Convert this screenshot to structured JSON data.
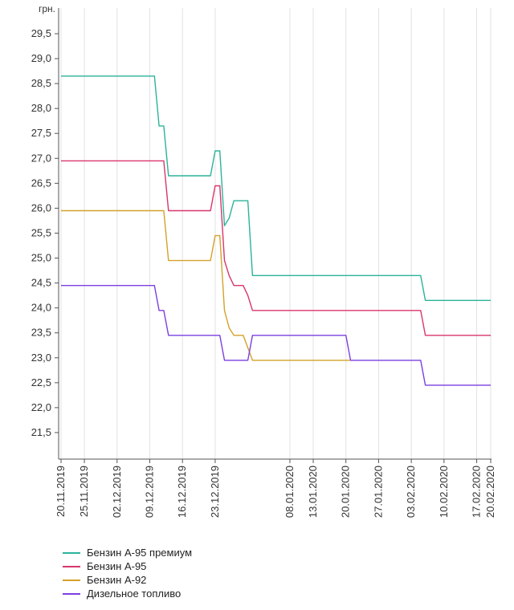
{
  "chart_data": {
    "type": "line",
    "ylabel": "грн.",
    "ylim": [
      21.0,
      29.5
    ],
    "y_ticks": [
      "21,5",
      "22,0",
      "22,5",
      "23,0",
      "23,5",
      "24,0",
      "24,5",
      "25,0",
      "25,5",
      "26,0",
      "26,5",
      "27,0",
      "27,5",
      "28,0",
      "28,5",
      "29,0",
      "29,5"
    ],
    "x_range": [
      "2019-11-20",
      "2020-02-20"
    ],
    "x_ticks": [
      {
        "date": "2019-11-20",
        "label": "20.11.2019"
      },
      {
        "date": "2019-11-25",
        "label": "25.11.2019"
      },
      {
        "date": "2019-12-02",
        "label": "02.12.2019"
      },
      {
        "date": "2019-12-09",
        "label": "09.12.2019"
      },
      {
        "date": "2019-12-16",
        "label": "16.12.2019"
      },
      {
        "date": "2019-12-23",
        "label": "23.12.2019"
      },
      {
        "date": "2020-01-08",
        "label": "08.01.2020"
      },
      {
        "date": "2020-01-13",
        "label": "13.01.2020"
      },
      {
        "date": "2020-01-20",
        "label": "20.01.2020"
      },
      {
        "date": "2020-01-27",
        "label": "27.01.2020"
      },
      {
        "date": "2020-02-03",
        "label": "03.02.2020"
      },
      {
        "date": "2020-02-10",
        "label": "10.02.2020"
      },
      {
        "date": "2020-02-17",
        "label": "17.02.2020"
      },
      {
        "date": "2020-02-20",
        "label": "20.02.2020"
      }
    ],
    "grid": "vertical",
    "legend_position": "bottom-left",
    "series": [
      {
        "name": "Бензин А-95 премиум",
        "color": "#2bb39a",
        "points": [
          [
            "2019-11-20",
            28.65
          ],
          [
            "2019-12-10",
            28.65
          ],
          [
            "2019-12-11",
            27.65
          ],
          [
            "2019-12-12",
            27.65
          ],
          [
            "2019-12-13",
            26.65
          ],
          [
            "2019-12-22",
            26.65
          ],
          [
            "2019-12-23",
            27.15
          ],
          [
            "2019-12-24",
            27.15
          ],
          [
            "2019-12-25",
            25.65
          ],
          [
            "2019-12-26",
            25.8
          ],
          [
            "2019-12-27",
            26.15
          ],
          [
            "2019-12-30",
            26.15
          ],
          [
            "2019-12-31",
            24.65
          ],
          [
            "2020-02-05",
            24.65
          ],
          [
            "2020-02-06",
            24.15
          ],
          [
            "2020-02-20",
            24.15
          ]
        ]
      },
      {
        "name": "Бензин А-95",
        "color": "#d9356b",
        "points": [
          [
            "2019-11-20",
            26.95
          ],
          [
            "2019-12-12",
            26.95
          ],
          [
            "2019-12-13",
            25.95
          ],
          [
            "2019-12-22",
            25.95
          ],
          [
            "2019-12-23",
            26.45
          ],
          [
            "2019-12-24",
            26.45
          ],
          [
            "2019-12-25",
            24.95
          ],
          [
            "2019-12-26",
            24.65
          ],
          [
            "2019-12-27",
            24.45
          ],
          [
            "2019-12-29",
            24.45
          ],
          [
            "2019-12-30",
            24.25
          ],
          [
            "2019-12-31",
            23.95
          ],
          [
            "2020-02-05",
            23.95
          ],
          [
            "2020-02-06",
            23.45
          ],
          [
            "2020-02-20",
            23.45
          ]
        ]
      },
      {
        "name": "Бензин А-92",
        "color": "#d4a12a",
        "points": [
          [
            "2019-11-20",
            25.95
          ],
          [
            "2019-12-12",
            25.95
          ],
          [
            "2019-12-13",
            24.95
          ],
          [
            "2019-12-22",
            24.95
          ],
          [
            "2019-12-23",
            25.45
          ],
          [
            "2019-12-24",
            25.45
          ],
          [
            "2019-12-25",
            23.95
          ],
          [
            "2019-12-26",
            23.6
          ],
          [
            "2019-12-27",
            23.45
          ],
          [
            "2019-12-29",
            23.45
          ],
          [
            "2019-12-30",
            23.2
          ],
          [
            "2019-12-31",
            22.95
          ],
          [
            "2020-01-20",
            22.95
          ],
          [
            "2020-01-21",
            22.95
          ]
        ]
      },
      {
        "name": "Дизельное топливо",
        "color": "#7b3fe0",
        "points": [
          [
            "2019-11-20",
            24.45
          ],
          [
            "2019-12-10",
            24.45
          ],
          [
            "2019-12-11",
            23.95
          ],
          [
            "2019-12-12",
            23.95
          ],
          [
            "2019-12-13",
            23.45
          ],
          [
            "2019-12-23",
            23.45
          ],
          [
            "2019-12-24",
            23.45
          ],
          [
            "2019-12-25",
            22.95
          ],
          [
            "2019-12-30",
            22.95
          ],
          [
            "2019-12-31",
            23.45
          ],
          [
            "2020-01-20",
            23.45
          ],
          [
            "2020-01-21",
            22.95
          ],
          [
            "2020-02-05",
            22.95
          ],
          [
            "2020-02-06",
            22.45
          ],
          [
            "2020-02-20",
            22.45
          ]
        ]
      }
    ]
  }
}
